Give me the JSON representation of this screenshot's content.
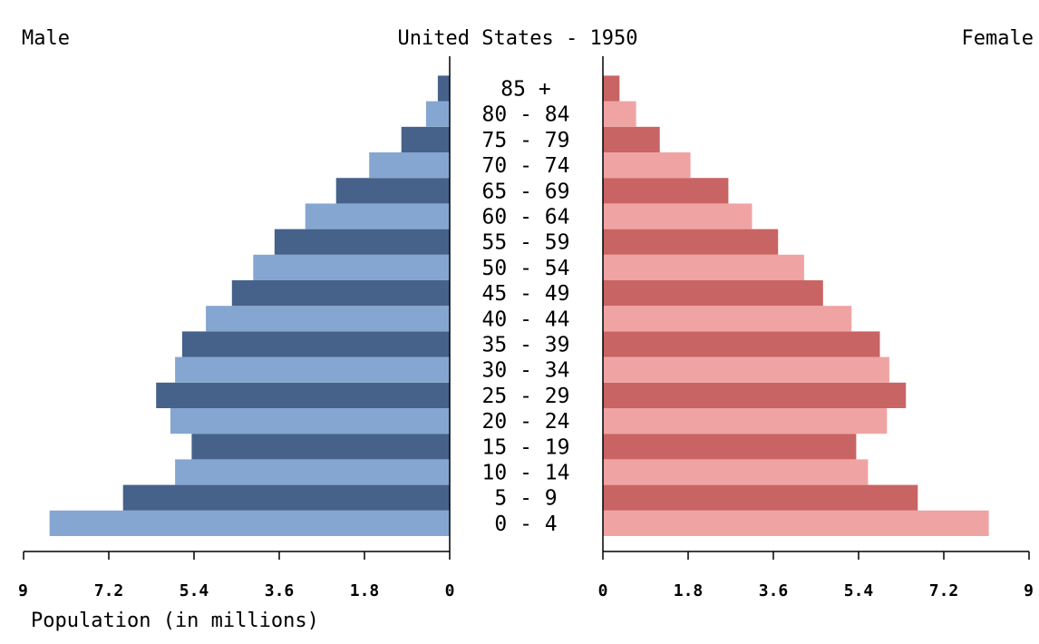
{
  "header": {
    "left": "Male",
    "title": "United States - 1950",
    "right": "Female"
  },
  "chart_data": {
    "type": "bar",
    "title": "United States - 1950",
    "xlabel": "Population (in millions)",
    "xlim": [
      0,
      9
    ],
    "x_ticks_male": [
      "9",
      "7.2",
      "5.4",
      "3.6",
      "1.8",
      "0"
    ],
    "x_ticks_female": [
      "0",
      "1.8",
      "3.6",
      "5.4",
      "7.2",
      "9"
    ],
    "tick_values": [
      0,
      1.8,
      3.6,
      5.4,
      7.2,
      9
    ],
    "categories": [
      "0 - 4",
      "5 - 9",
      "10 - 14",
      "15 - 19",
      "20 - 24",
      "25 - 29",
      "30 - 34",
      "35 - 39",
      "40 - 44",
      "45 - 49",
      "50 - 54",
      "55 - 59",
      "60 - 64",
      "65 - 69",
      "70 - 74",
      "75 - 79",
      "80 - 84",
      "85 +"
    ],
    "series": [
      {
        "name": "Male",
        "values": [
          8.45,
          6.9,
          5.8,
          5.45,
          5.9,
          6.2,
          5.8,
          5.65,
          5.15,
          4.6,
          4.15,
          3.7,
          3.05,
          2.4,
          1.7,
          1.02,
          0.5,
          0.25
        ],
        "colors": [
          "#85a6d0",
          "#46628a"
        ]
      },
      {
        "name": "Female",
        "values": [
          8.15,
          6.65,
          5.6,
          5.35,
          6.0,
          6.4,
          6.05,
          5.85,
          5.25,
          4.65,
          4.25,
          3.7,
          3.15,
          2.65,
          1.85,
          1.2,
          0.7,
          0.35
        ],
        "colors": [
          "#f0a3a3",
          "#c96464"
        ]
      }
    ]
  }
}
